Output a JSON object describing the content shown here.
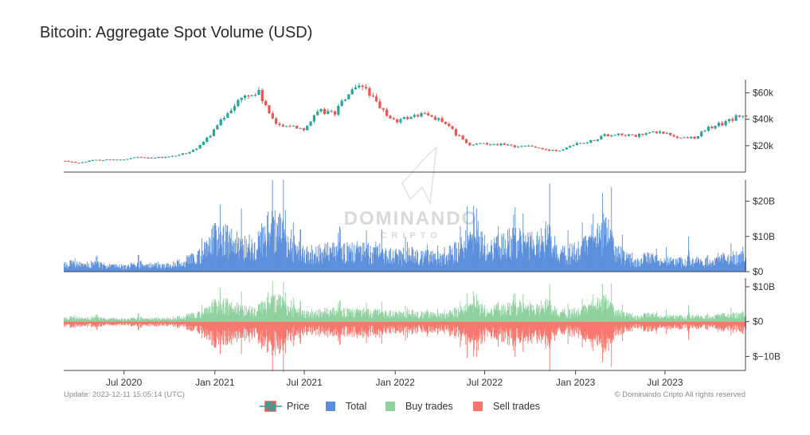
{
  "chart_data": {
    "type": "line",
    "title": "Bitcoin: Aggregate Spot Volume (USD)",
    "x_ticks": [
      "Jul 2020",
      "Jan 2021",
      "Jul 2021",
      "Jan 2022",
      "Jul 2022",
      "Jan 2023",
      "Jul 2023"
    ],
    "x_range": [
      "2020-03-01",
      "2023-12-11"
    ],
    "panels": [
      {
        "id": "price",
        "type": "candlestick",
        "y_ticks": [
          "$20k",
          "$40k",
          "$60k"
        ],
        "y_tick_values": [
          20000,
          40000,
          60000
        ],
        "ylim": [
          0,
          70000
        ],
        "series": [
          {
            "name": "Price",
            "color_up": "#26a69a",
            "color_down": "#ef5350",
            "points": [
              [
                "2020-03-01",
                8500
              ],
              [
                "2020-04-01",
                7000
              ],
              [
                "2020-05-01",
                9000
              ],
              [
                "2020-06-01",
                9500
              ],
              [
                "2020-07-01",
                9200
              ],
              [
                "2020-08-01",
                11500
              ],
              [
                "2020-09-01",
                10800
              ],
              [
                "2020-10-01",
                11500
              ],
              [
                "2020-11-01",
                14000
              ],
              [
                "2020-12-01",
                19000
              ],
              [
                "2021-01-01",
                32000
              ],
              [
                "2021-02-01",
                48000
              ],
              [
                "2021-03-01",
                57000
              ],
              [
                "2021-04-01",
                60000
              ],
              [
                "2021-05-01",
                37000
              ],
              [
                "2021-06-01",
                35000
              ],
              [
                "2021-07-01",
                33000
              ],
              [
                "2021-08-01",
                46000
              ],
              [
                "2021-09-01",
                45000
              ],
              [
                "2021-10-01",
                60000
              ],
              [
                "2021-11-01",
                65000
              ],
              [
                "2021-12-01",
                48000
              ],
              [
                "2022-01-01",
                38000
              ],
              [
                "2022-02-01",
                42000
              ],
              [
                "2022-03-01",
                44000
              ],
              [
                "2022-04-01",
                40000
              ],
              [
                "2022-05-01",
                30000
              ],
              [
                "2022-06-01",
                20000
              ],
              [
                "2022-07-01",
                22000
              ],
              [
                "2022-08-01",
                21000
              ],
              [
                "2022-09-01",
                19500
              ],
              [
                "2022-10-01",
                20000
              ],
              [
                "2022-11-01",
                16500
              ],
              [
                "2022-12-01",
                16800
              ],
              [
                "2023-01-01",
                22000
              ],
              [
                "2023-02-01",
                23500
              ],
              [
                "2023-03-01",
                28000
              ],
              [
                "2023-04-01",
                29000
              ],
              [
                "2023-05-01",
                27000
              ],
              [
                "2023-06-01",
                30000
              ],
              [
                "2023-07-01",
                29500
              ],
              [
                "2023-08-01",
                26000
              ],
              [
                "2023-09-01",
                26500
              ],
              [
                "2023-10-01",
                34000
              ],
              [
                "2023-11-01",
                37500
              ],
              [
                "2023-12-01",
                43000
              ],
              [
                "2023-12-11",
                41500
              ]
            ]
          }
        ]
      },
      {
        "id": "total",
        "type": "bar",
        "y_ticks": [
          "$0",
          "$10B",
          "$20B"
        ],
        "y_tick_values": [
          0,
          10,
          20
        ],
        "ylim": [
          0,
          26
        ],
        "unit": "B USD",
        "series": [
          {
            "name": "Total",
            "color": "#5b8fdc",
            "points": [
              [
                "2020-03-01",
                2.5
              ],
              [
                "2020-04-01",
                2.0
              ],
              [
                "2020-05-01",
                2.2
              ],
              [
                "2020-06-01",
                1.5
              ],
              [
                "2020-07-01",
                1.5
              ],
              [
                "2020-08-01",
                2.2
              ],
              [
                "2020-09-01",
                1.8
              ],
              [
                "2020-10-01",
                1.8
              ],
              [
                "2020-11-01",
                3.0
              ],
              [
                "2020-12-01",
                5.0
              ],
              [
                "2021-01-01",
                10.0
              ],
              [
                "2021-02-01",
                9.0
              ],
              [
                "2021-03-01",
                7.0
              ],
              [
                "2021-04-01",
                8.0
              ],
              [
                "2021-05-01",
                13.0
              ],
              [
                "2021-06-01",
                8.0
              ],
              [
                "2021-07-01",
                5.0
              ],
              [
                "2021-08-01",
                6.0
              ],
              [
                "2021-09-01",
                6.0
              ],
              [
                "2021-10-01",
                6.0
              ],
              [
                "2021-11-01",
                6.0
              ],
              [
                "2021-12-01",
                5.0
              ],
              [
                "2022-01-01",
                5.0
              ],
              [
                "2022-02-01",
                5.0
              ],
              [
                "2022-03-01",
                4.5
              ],
              [
                "2022-04-01",
                4.0
              ],
              [
                "2022-05-01",
                6.0
              ],
              [
                "2022-06-01",
                9.0
              ],
              [
                "2022-07-01",
                8.0
              ],
              [
                "2022-08-01",
                7.5
              ],
              [
                "2022-09-01",
                9.0
              ],
              [
                "2022-10-01",
                8.0
              ],
              [
                "2022-11-01",
                10.0
              ],
              [
                "2022-12-01",
                5.0
              ],
              [
                "2023-01-01",
                6.0
              ],
              [
                "2023-02-01",
                8.0
              ],
              [
                "2023-03-01",
                12.0
              ],
              [
                "2023-04-01",
                5.0
              ],
              [
                "2023-05-01",
                3.5
              ],
              [
                "2023-06-01",
                4.0
              ],
              [
                "2023-07-01",
                3.0
              ],
              [
                "2023-08-01",
                3.0
              ],
              [
                "2023-09-01",
                2.5
              ],
              [
                "2023-10-01",
                3.5
              ],
              [
                "2023-11-01",
                4.0
              ],
              [
                "2023-12-01",
                4.5
              ],
              [
                "2023-12-11",
                5.0
              ]
            ],
            "peaks": [
              [
                "2021-01-11",
                19
              ],
              [
                "2021-02-23",
                18
              ],
              [
                "2021-04-18",
                17
              ],
              [
                "2021-05-19",
                26
              ],
              [
                "2021-06-22",
                12
              ],
              [
                "2021-09-07",
                11
              ],
              [
                "2021-12-04",
                12
              ],
              [
                "2022-05-12",
                13
              ],
              [
                "2022-06-14",
                18
              ],
              [
                "2022-11-09",
                25
              ],
              [
                "2023-01-14",
                14
              ],
              [
                "2023-03-14",
                24
              ],
              [
                "2023-08-17",
                10
              ],
              [
                "2023-12-05",
                7
              ]
            ]
          }
        ]
      },
      {
        "id": "buy-sell",
        "type": "bar",
        "y_ticks": [
          "$−10B",
          "$0",
          "$10B"
        ],
        "y_tick_values": [
          -10,
          0,
          10
        ],
        "ylim": [
          -14,
          12.5
        ],
        "unit": "B USD",
        "series": [
          {
            "name": "Buy trades",
            "color": "#8fd19e",
            "sign": 1
          },
          {
            "name": "Sell trades",
            "color": "#f8766d",
            "sign": -1
          }
        ]
      }
    ],
    "legend": {
      "position": "bottom-center",
      "items": [
        {
          "label": "Price",
          "color": "#26a69a",
          "color2": "#ef5350",
          "kind": "candle"
        },
        {
          "label": "Total",
          "color": "#5b8fdc",
          "kind": "square"
        },
        {
          "label": "Buy trades",
          "color": "#8fd19e",
          "kind": "square"
        },
        {
          "label": "Sell trades",
          "color": "#f8766d",
          "kind": "square"
        }
      ]
    },
    "footer_left": "Update: 2023-12-11 15:05:14 (UTC)",
    "footer_right": "© Dominando Cripto All rights reserved",
    "watermark": [
      "DOMINANDO",
      "CRIPTO"
    ]
  }
}
